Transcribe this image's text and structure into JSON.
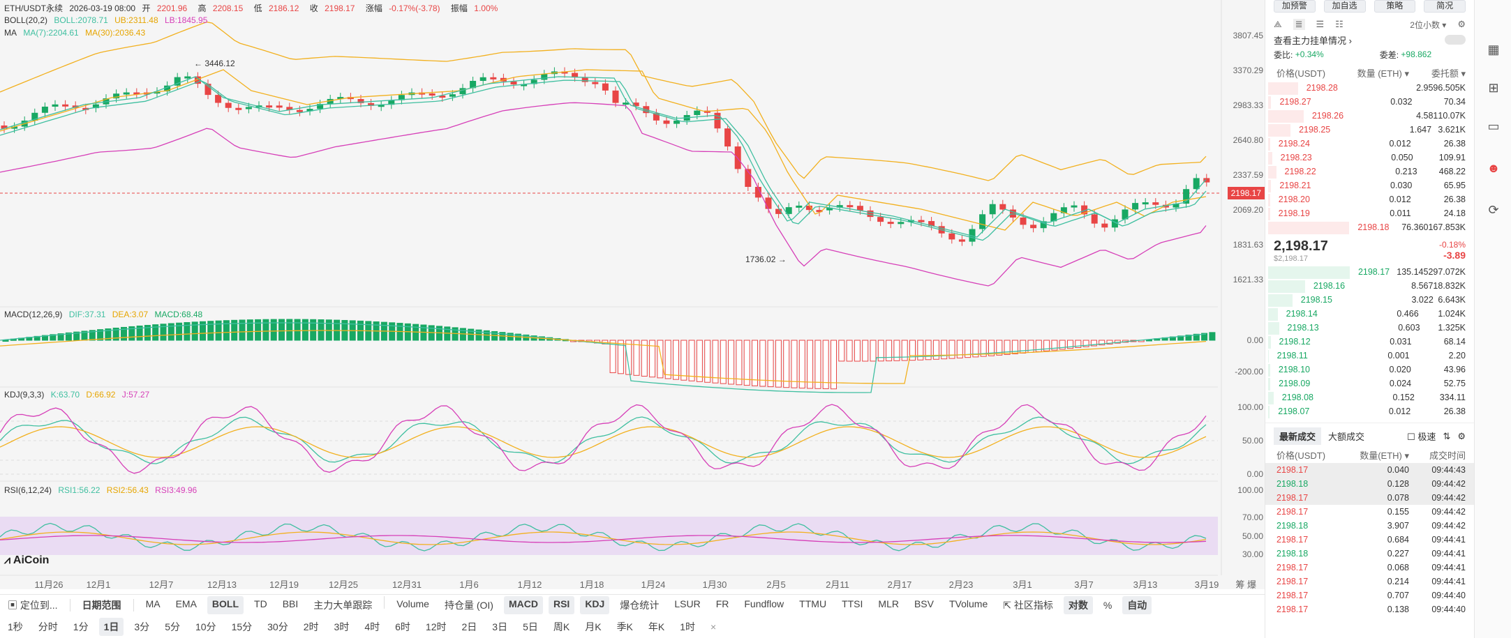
{
  "symbol": {
    "name": "ETH/USDT永续",
    "time": "2026-03-19 08:00",
    "open_l": "开",
    "open": "2201.96",
    "high_l": "高",
    "high": "2208.15",
    "low_l": "低",
    "low": "2186.12",
    "close_l": "收",
    "close": "2198.17",
    "chg_l": "涨幅",
    "chg": "-0.17%(-3.78)",
    "amp_l": "振幅",
    "amp": "1.00%"
  },
  "indicators": {
    "boll": "BOLL(20,2)",
    "boll_v": "BOLL:2078.71",
    "ub": "UB:2311.48",
    "lb": "LB:1845.95",
    "ma": "MA",
    "ma7": "MA(7):2204.61",
    "ma30": "MA(30):2036.43",
    "macd": "MACD(12,26,9)",
    "dif": "DIF:37.31",
    "dea": "DEA:3.07",
    "macd_v": "MACD:68.48",
    "kdj": "KDJ(9,3,3)",
    "k": "K:63.70",
    "d": "D:66.92",
    "j": "J:57.27",
    "rsi": "RSI(6,12,24)",
    "rsi1": "RSI1:56.22",
    "rsi2": "RSI2:56.43",
    "rsi3": "RSI3:49.96"
  },
  "price_axis": [
    "3807.45",
    "3370.29",
    "2983.33",
    "2640.80",
    "2337.59",
    "2069.20",
    "1831.63",
    "1621.33"
  ],
  "current_price_tag": "2198.17",
  "high_label": "3446.12",
  "low_label": "1736.02",
  "macd_axis": [
    "0.00",
    "-200.00"
  ],
  "kdj_axis": [
    "100.00",
    "50.00",
    "0.00"
  ],
  "rsi_axis": [
    "100.00",
    "70.00",
    "50.00",
    "30.00"
  ],
  "x_labels": [
    "11月26",
    "12月1",
    "12月7",
    "12月13",
    "12月19",
    "12月25",
    "12月31",
    "1月6",
    "1月12",
    "1月18",
    "1月24",
    "1月30",
    "2月5",
    "2月11",
    "2月17",
    "2月23",
    "3月1",
    "3月7",
    "3月13",
    "3月19"
  ],
  "watermark": "AiCoin",
  "axis_corner": "筹  爆",
  "toolbar1": {
    "locate": "定位到...",
    "range": "日期范围",
    "items": [
      "MA",
      "EMA",
      "BOLL",
      "TD",
      "BBI",
      "主力大单跟踪",
      "Volume",
      "持仓量 (OI)",
      "MACD",
      "RSI",
      "KDJ",
      "爆仓统计",
      "LSUR",
      "FR",
      "Fundflow",
      "TTMU",
      "TTSI",
      "MLR",
      "BSV",
      "TVolume"
    ],
    "community": "社区指标",
    "log": "对数",
    "pct": "%",
    "auto": "自动"
  },
  "toolbar2": {
    "items": [
      "1秒",
      "分时",
      "1分",
      "1日",
      "3分",
      "5分",
      "10分",
      "15分",
      "30分",
      "2时",
      "3时",
      "4时",
      "6时",
      "12时",
      "2日",
      "3日",
      "5日",
      "周K",
      "月K",
      "季K",
      "年K",
      "1时"
    ],
    "selected": "1日",
    "close": "×"
  },
  "right_top": [
    "加预警",
    "加自选",
    "策略",
    "简况"
  ],
  "depth_title": "查看主力挂单情况 ›",
  "decimals": "2位小数 ▾",
  "ratio_l": "委比:",
  "ratio": "+0.34%",
  "diff_l": "委差:",
  "diff": "+98.862",
  "ob_headers": [
    "价格(USDT)",
    "数量 (ETH) ▾",
    "委托额 ▾"
  ],
  "asks": [
    [
      "2198.28",
      "2.959",
      "6.505K"
    ],
    [
      "2198.27",
      "0.032",
      "70.34"
    ],
    [
      "2198.26",
      "4.581",
      "10.07K"
    ],
    [
      "2198.25",
      "1.647",
      "3.621K"
    ],
    [
      "2198.24",
      "0.012",
      "26.38"
    ],
    [
      "2198.23",
      "0.050",
      "109.91"
    ],
    [
      "2198.22",
      "0.213",
      "468.22"
    ],
    [
      "2198.21",
      "0.030",
      "65.95"
    ],
    [
      "2198.20",
      "0.012",
      "26.38"
    ],
    [
      "2198.19",
      "0.011",
      "24.18"
    ],
    [
      "2198.18",
      "76.360",
      "167.853K"
    ]
  ],
  "mid": {
    "price": "2,198.17",
    "usd": "$2,198.17",
    "pct": "-0.18%",
    "chg": "-3.89"
  },
  "bids": [
    [
      "2198.17",
      "135.145",
      "297.072K"
    ],
    [
      "2198.16",
      "8.567",
      "18.832K"
    ],
    [
      "2198.15",
      "3.022",
      "6.643K"
    ],
    [
      "2198.14",
      "0.466",
      "1.024K"
    ],
    [
      "2198.13",
      "0.603",
      "1.325K"
    ],
    [
      "2198.12",
      "0.031",
      "68.14"
    ],
    [
      "2198.11",
      "0.001",
      "2.20"
    ],
    [
      "2198.10",
      "0.020",
      "43.96"
    ],
    [
      "2198.09",
      "0.024",
      "52.75"
    ],
    [
      "2198.08",
      "0.152",
      "334.11"
    ],
    [
      "2198.07",
      "0.012",
      "26.38"
    ]
  ],
  "trades_tabs": [
    "最新成交",
    "大额成交"
  ],
  "fast": "极速",
  "trade_headers": [
    "价格(USDT)",
    "数量(ETH) ▾",
    "成交时间"
  ],
  "trades": [
    [
      "2198.17",
      "0.040",
      "09:44:43",
      "s"
    ],
    [
      "2198.18",
      "0.128",
      "09:44:42",
      "b"
    ],
    [
      "2198.17",
      "0.078",
      "09:44:42",
      "s"
    ],
    [
      "2198.17",
      "0.155",
      "09:44:42",
      "s"
    ],
    [
      "2198.18",
      "3.907",
      "09:44:42",
      "b"
    ],
    [
      "2198.17",
      "0.684",
      "09:44:41",
      "s"
    ],
    [
      "2198.18",
      "0.227",
      "09:44:41",
      "b"
    ],
    [
      "2198.17",
      "0.068",
      "09:44:41",
      "s"
    ],
    [
      "2198.17",
      "0.214",
      "09:44:41",
      "s"
    ],
    [
      "2198.17",
      "0.707",
      "09:44:40",
      "s"
    ],
    [
      "2198.17",
      "0.138",
      "09:44:40",
      "s"
    ]
  ],
  "colors": {
    "up": "#18a863",
    "down": "#e84545",
    "boll_mid": "#3fbfa0",
    "boll_ub": "#f2b01e",
    "boll_lb": "#d63fb8",
    "ma7": "#3fbfa0",
    "ma30": "#f2b01e"
  },
  "chart_data": {
    "type": "candlestick",
    "series": "ETH/USDT daily",
    "candles": [
      [
        2201.96,
        2208.15,
        2186.12,
        2198.17
      ]
    ]
  }
}
